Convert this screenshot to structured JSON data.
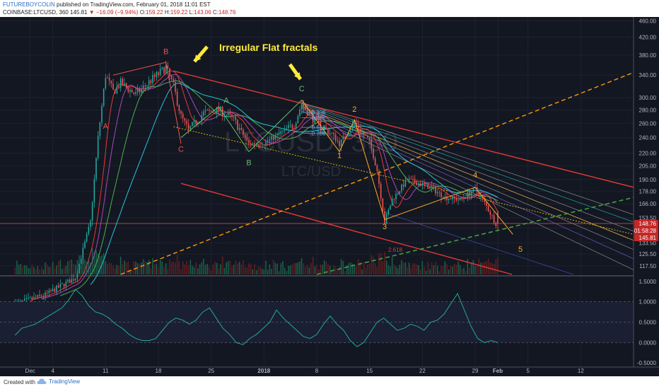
{
  "header": {
    "author": "FUTUREBOYCOLIN",
    "published": "published on TradingView.com, February 01, 2018 11:01 EST",
    "symbol": "COINBASE:LTCUSD, 360",
    "last": "145.81",
    "change": "▼ −16.09 (−9.94%)",
    "o_label": "O:",
    "o": "159.22",
    "h_label": "H:",
    "h": "159.22",
    "l_label": "L:",
    "l": "143.06",
    "c_label": "C:",
    "c": "148.76"
  },
  "watermark": {
    "symbol": "LTCUSD, 360",
    "name": "LTC/USD"
  },
  "annotations": {
    "title": "Irregular Flat fractals",
    "waves": {
      "A_red": "A",
      "B_red": "B",
      "C_red": "C",
      "A_green": "A",
      "B_green": "B",
      "C_green": "C",
      "w1": "1",
      "w2": "2",
      "w3": "3",
      "w4": "4",
      "w5": "5"
    },
    "fib": [
      "0.236",
      "0.382",
      "0.618",
      "0.786"
    ],
    "fib_ext": "2.618"
  },
  "price_axis": {
    "ticks": [
      "460.00",
      "420.00",
      "380.00",
      "340.00",
      "300.00",
      "280.00",
      "260.00",
      "240.00",
      "220.00",
      "205.00",
      "190.00",
      "178.00",
      "166.00",
      "153.50",
      "145.00",
      "133.50",
      "125.50",
      "117.50"
    ],
    "badges": [
      {
        "text": "148.76",
        "color": "#c62828"
      },
      {
        "text": "01:58:28",
        "color": "#c62828"
      },
      {
        "text": "145.81",
        "color": "#c62828"
      }
    ]
  },
  "osc_axis": {
    "ticks": [
      "1.5000",
      "1.0000",
      "0.5000",
      "0.0000",
      "-0.5000"
    ]
  },
  "time_axis": {
    "ticks": [
      "Dec",
      "4",
      "11",
      "18",
      "25",
      "2018",
      "8",
      "15",
      "22",
      "29",
      "Feb",
      "5",
      "12"
    ]
  },
  "footer": {
    "created": "Created with",
    "brand": "TradingView"
  },
  "colors": {
    "background": "#131722",
    "up": "#26a69a",
    "down": "#ef5350",
    "channel": "#e53935",
    "orange": "#ff9800",
    "green": "#43a047",
    "annotation": "#ffeb3b"
  },
  "chart_data": {
    "type": "candlestick",
    "symbol": "COINBASE:LTCUSD",
    "timeframe": "360",
    "price_scale": "log",
    "ylim": [
      112,
      470
    ],
    "x_start": "Nov 27 2017",
    "x_end": "Feb 19 2018",
    "ohlc_last": {
      "open": 159.22,
      "high": 159.22,
      "low": 143.06,
      "close": 148.76
    },
    "anchors": [
      {
        "date": "Nov 29",
        "price": 95
      },
      {
        "date": "Dec 3",
        "price": 100
      },
      {
        "date": "Dec 7",
        "price": 110
      },
      {
        "date": "Dec 9",
        "price": 150
      },
      {
        "date": "Dec 10",
        "price": 240
      },
      {
        "date": "Dec 11",
        "price": 340
      },
      {
        "date": "Dec 12",
        "price": 310
      },
      {
        "date": "Dec 13",
        "price": 325
      },
      {
        "date": "Dec 15",
        "price": 305
      },
      {
        "date": "Dec 17",
        "price": 330
      },
      {
        "date": "Dec 19",
        "price": 355
      },
      {
        "date": "Dec 20",
        "price": 320
      },
      {
        "date": "Dec 21",
        "price": 270
      },
      {
        "date": "Dec 22",
        "price": 250
      },
      {
        "date": "Dec 24",
        "price": 275
      },
      {
        "date": "Dec 26",
        "price": 280
      },
      {
        "date": "Dec 28",
        "price": 265
      },
      {
        "date": "Dec 30",
        "price": 232
      },
      {
        "date": "Jan 1",
        "price": 232
      },
      {
        "date": "Jan 3",
        "price": 245
      },
      {
        "date": "Jan 5",
        "price": 258
      },
      {
        "date": "Jan 6",
        "price": 290
      },
      {
        "date": "Jan 8",
        "price": 260
      },
      {
        "date": "Jan 10",
        "price": 245
      },
      {
        "date": "Jan 11",
        "price": 232
      },
      {
        "date": "Jan 13",
        "price": 260
      },
      {
        "date": "Jan 15",
        "price": 235
      },
      {
        "date": "Jan 16",
        "price": 200
      },
      {
        "date": "Jan 17",
        "price": 150
      },
      {
        "date": "Jan 18",
        "price": 170
      },
      {
        "date": "Jan 20",
        "price": 190
      },
      {
        "date": "Jan 23",
        "price": 182
      },
      {
        "date": "Jan 25",
        "price": 172
      },
      {
        "date": "Jan 27",
        "price": 170
      },
      {
        "date": "Jan 29",
        "price": 180
      },
      {
        "date": "Jan 30",
        "price": 170
      },
      {
        "date": "Feb 1",
        "price": 146
      }
    ],
    "oscillator": {
      "ylim": [
        -0.6,
        1.6
      ],
      "values": [
        0.18,
        0.35,
        0.4,
        0.45,
        0.55,
        0.65,
        0.75,
        0.85,
        1.05,
        1.3,
        1.15,
        0.9,
        0.75,
        0.7,
        0.6,
        0.45,
        0.35,
        0.2,
        0.1,
        0.05,
        0.05,
        0.1,
        0.3,
        0.5,
        0.6,
        0.55,
        0.45,
        0.55,
        0.75,
        0.85,
        0.6,
        0.35,
        0.2,
        0.0,
        -0.05,
        0.1,
        0.2,
        0.35,
        0.5,
        0.8,
        0.6,
        0.45,
        0.3,
        0.15,
        0.1,
        0.2,
        0.45,
        0.65,
        0.45,
        0.3,
        0.05,
        -0.1,
        0.0,
        0.25,
        0.5,
        0.6,
        0.45,
        0.3,
        0.35,
        0.45,
        0.4,
        0.3,
        0.5,
        0.55,
        0.7,
        0.95,
        1.2,
        0.8,
        0.4,
        0.1,
        0.0,
        0.05,
        0.0
      ]
    }
  }
}
